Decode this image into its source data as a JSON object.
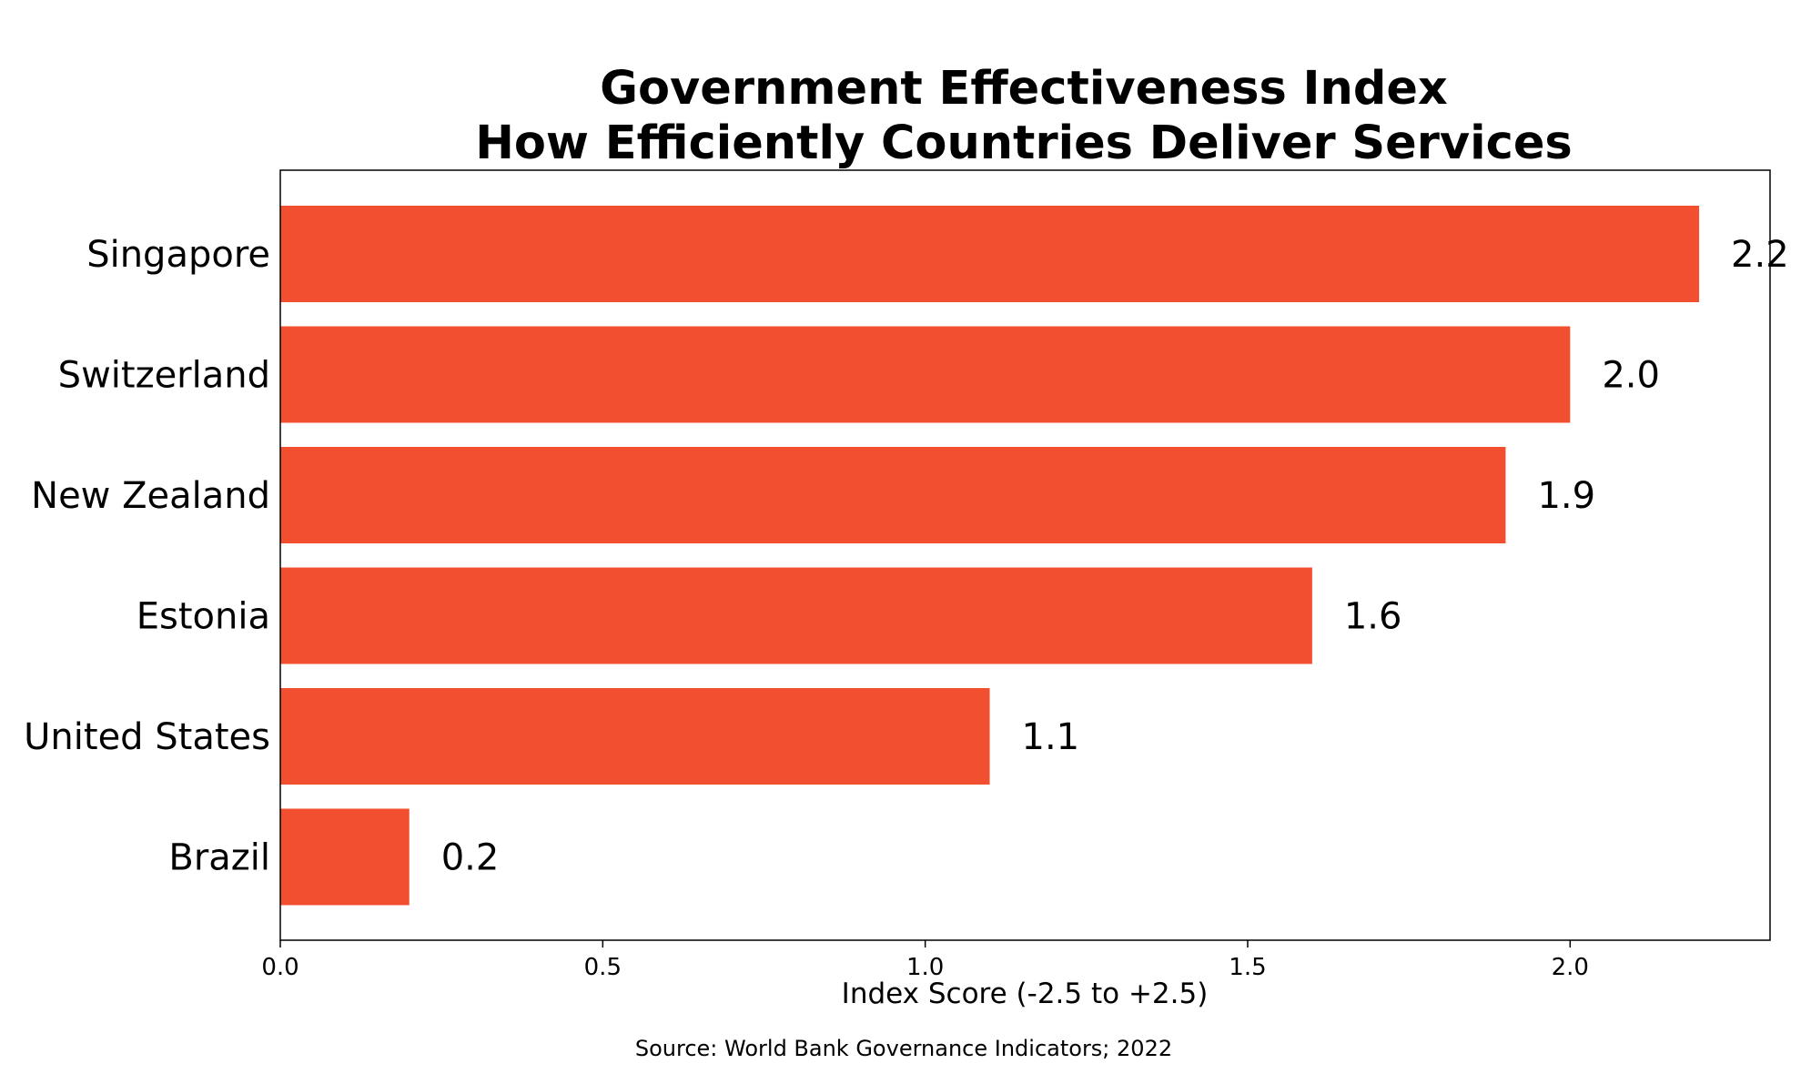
{
  "chart_data": {
    "type": "bar",
    "orientation": "horizontal",
    "title": [
      "Government Effectiveness Index",
      "How Efficiently Countries Deliver Services"
    ],
    "categories": [
      "Singapore",
      "Switzerland",
      "New Zealand",
      "Estonia",
      "United States",
      "Brazil"
    ],
    "values": [
      2.2,
      2.0,
      1.9,
      1.6,
      1.1,
      0.2
    ],
    "value_labels": [
      "2.2",
      "2.0",
      "1.9",
      "1.6",
      "1.1",
      "0.2"
    ],
    "xlabel": "Index Score (-2.5 to +2.5)",
    "ylabel": "",
    "xlim": [
      0,
      2.31
    ],
    "x_ticks": [
      0.0,
      0.5,
      1.0,
      1.5,
      2.0
    ],
    "x_tick_labels": [
      "0.0",
      "0.5",
      "1.0",
      "1.5",
      "2.0"
    ],
    "grid": false,
    "bar_color": "#F24F30",
    "source": "Source: World Bank Governance Indicators; 2022"
  }
}
